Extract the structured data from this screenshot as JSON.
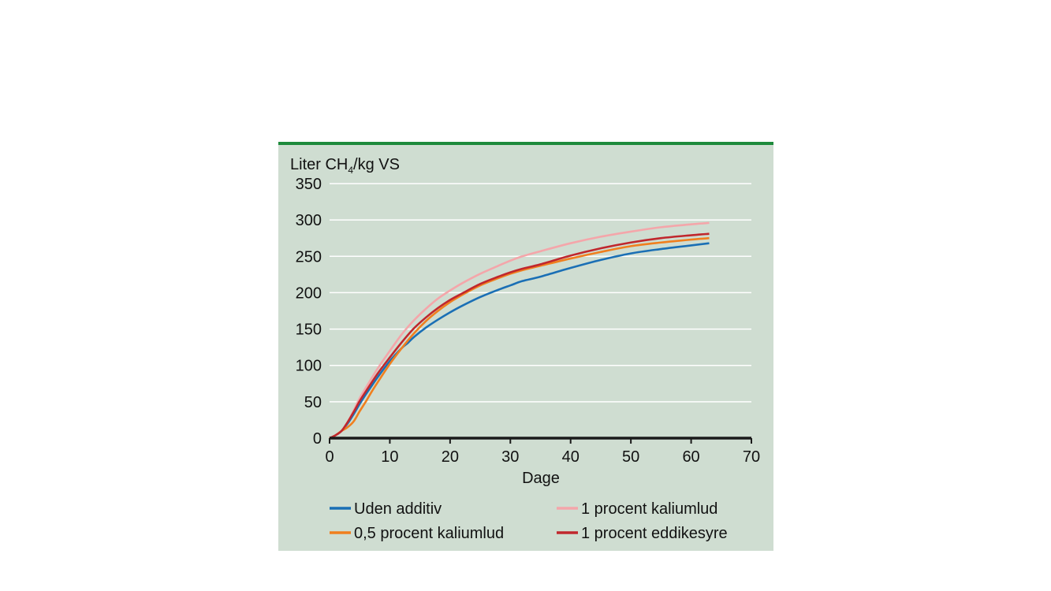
{
  "chart_data": {
    "type": "line",
    "ylabel_main": "Liter CH",
    "ylabel_sub": "4",
    "ylabel_rest": "/kg VS",
    "xlabel": "Dage",
    "xlim": [
      0,
      70
    ],
    "ylim": [
      0,
      350
    ],
    "xticks": [
      0,
      10,
      20,
      30,
      40,
      50,
      60,
      70
    ],
    "yticks": [
      0,
      50,
      100,
      150,
      200,
      250,
      300,
      350
    ],
    "grid": true,
    "legend_position": "bottom",
    "series": [
      {
        "name": "Uden additiv",
        "color": "#1a6fb5",
        "x": [
          0,
          1,
          2,
          3,
          4,
          5,
          6,
          7,
          8,
          10,
          12,
          13,
          14,
          16,
          18,
          20,
          22,
          25,
          28,
          30,
          32,
          35,
          40,
          45,
          50,
          55,
          60,
          63
        ],
        "y": [
          0,
          4,
          10,
          20,
          33,
          47,
          60,
          72,
          84,
          106,
          124,
          131,
          139,
          152,
          163,
          173,
          182,
          194,
          204,
          210,
          216,
          222,
          234,
          245,
          254,
          260,
          265,
          268
        ]
      },
      {
        "name": "1 procent kaliumlud",
        "color": "#f4a6aa",
        "x": [
          0,
          1,
          2,
          3,
          4,
          5,
          6,
          8,
          10,
          12,
          14,
          16,
          18,
          20,
          22,
          25,
          28,
          30,
          32,
          35,
          40,
          45,
          50,
          55,
          60,
          63
        ],
        "y": [
          0,
          4,
          10,
          22,
          38,
          55,
          69,
          96,
          120,
          143,
          162,
          178,
          192,
          203,
          213,
          226,
          237,
          244,
          250,
          257,
          268,
          277,
          284,
          290,
          294,
          296
        ]
      },
      {
        "name": "0,5 procent kaliumlud",
        "color": "#f07f1e",
        "x": [
          0,
          1,
          2,
          3,
          4,
          5,
          6,
          7,
          8,
          10,
          12,
          14,
          16,
          18,
          20,
          22,
          25,
          28,
          30,
          32,
          35,
          40,
          45,
          50,
          55,
          60,
          63
        ],
        "y": [
          0,
          4,
          10,
          15,
          23,
          37,
          50,
          64,
          77,
          102,
          124,
          144,
          161,
          175,
          187,
          197,
          210,
          220,
          226,
          231,
          237,
          247,
          256,
          264,
          269,
          273,
          275
        ]
      },
      {
        "name": "1 procent eddikesyre",
        "color": "#c0272d",
        "x": [
          0,
          1,
          2,
          3,
          4,
          5,
          6,
          8,
          10,
          12,
          14,
          16,
          18,
          20,
          22,
          25,
          28,
          30,
          32,
          35,
          40,
          45,
          50,
          55,
          60,
          63
        ],
        "y": [
          0,
          4,
          10,
          22,
          36,
          51,
          64,
          89,
          111,
          132,
          151,
          166,
          179,
          190,
          199,
          212,
          222,
          228,
          233,
          239,
          251,
          261,
          269,
          275,
          279,
          281
        ]
      }
    ]
  }
}
